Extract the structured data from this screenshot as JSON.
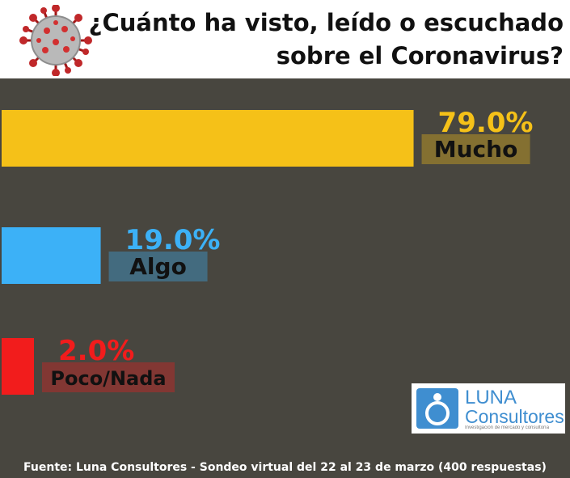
{
  "header": {
    "title_line1": "¿Cuánto ha visto, leído o escuchado",
    "title_line2": "sobre el Coronavirus?"
  },
  "chart_data": {
    "type": "bar",
    "orientation": "horizontal",
    "categories": [
      "Mucho",
      "Algo",
      "Poco/Nada"
    ],
    "values": [
      79.0,
      19.0,
      2.0
    ],
    "value_labels": [
      "79.0%",
      "19.0%",
      "2.0%"
    ],
    "colors": [
      "#f5c118",
      "#3cb1f7",
      "#f21c1c"
    ],
    "xlim": [
      0,
      100
    ],
    "grid": false,
    "legend": "none",
    "title": "¿Cuánto ha visto, leído o escuchado sobre el Coronavirus?"
  },
  "logo": {
    "name": "LUNA",
    "sub": "Consultores",
    "tagline": "Investigación de mercado y consultoría"
  },
  "footer": {
    "source": "Fuente: Luna Consultores - Sondeo virtual del 22 al 23 de marzo (400 respuestas)"
  },
  "colors": {
    "background": "#48463f",
    "header": "#ffffff"
  },
  "icons": {
    "header_image": "coronavirus-icon",
    "logo_mark": "luna-logo-icon"
  }
}
